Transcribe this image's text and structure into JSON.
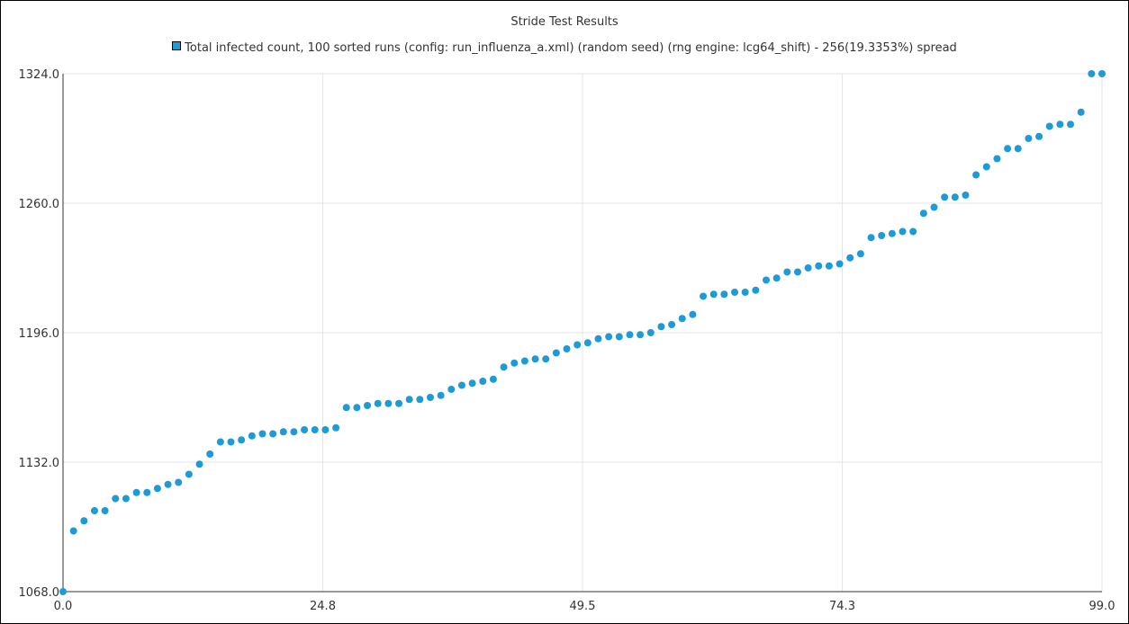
{
  "colors": {
    "series": "#1e9ad6",
    "grid": "#e6e6e6",
    "axis": "#333333"
  },
  "chart_data": {
    "type": "scatter",
    "title": "Stride Test Results",
    "xlabel": "",
    "ylabel": "",
    "grid": true,
    "legend_position": "top-center",
    "xlim": [
      0,
      99
    ],
    "ylim": [
      1068,
      1324
    ],
    "x_ticks": [
      "0.0",
      "24.8",
      "49.5",
      "74.3",
      "99.0"
    ],
    "y_ticks": [
      "1068.0",
      "1132.0",
      "1196.0",
      "1260.0",
      "1324.0"
    ],
    "series": [
      {
        "name": "Total infected count, 100 sorted runs (config: run_influenza_a.xml) (random seed) (rng engine: lcg64_shift) - 256(19.3353%) spread",
        "x": [
          0,
          1,
          2,
          3,
          4,
          5,
          6,
          7,
          8,
          9,
          10,
          11,
          12,
          13,
          14,
          15,
          16,
          17,
          18,
          19,
          20,
          21,
          22,
          23,
          24,
          25,
          26,
          27,
          28,
          29,
          30,
          31,
          32,
          33,
          34,
          35,
          36,
          37,
          38,
          39,
          40,
          41,
          42,
          43,
          44,
          45,
          46,
          47,
          48,
          49,
          50,
          51,
          52,
          53,
          54,
          55,
          56,
          57,
          58,
          59,
          60,
          61,
          62,
          63,
          64,
          65,
          66,
          67,
          68,
          69,
          70,
          71,
          72,
          73,
          74,
          75,
          76,
          77,
          78,
          79,
          80,
          81,
          82,
          83,
          84,
          85,
          86,
          87,
          88,
          89,
          90,
          91,
          92,
          93,
          94,
          95,
          96,
          97,
          98,
          99
        ],
        "y": [
          1068,
          1098,
          1103,
          1108,
          1108,
          1114,
          1114,
          1117,
          1117,
          1119,
          1121,
          1122,
          1126,
          1131,
          1136,
          1142,
          1142,
          1143,
          1145,
          1146,
          1146,
          1147,
          1147,
          1148,
          1148,
          1148,
          1149,
          1159,
          1159,
          1160,
          1161,
          1161,
          1161,
          1163,
          1163,
          1164,
          1165,
          1168,
          1170,
          1171,
          1172,
          1173,
          1179,
          1181,
          1182,
          1183,
          1183,
          1186,
          1188,
          1190,
          1191,
          1193,
          1194,
          1194,
          1195,
          1195,
          1196,
          1199,
          1200,
          1203,
          1205,
          1214,
          1215,
          1215,
          1216,
          1216,
          1217,
          1222,
          1223,
          1226,
          1226,
          1228,
          1229,
          1229,
          1230,
          1233,
          1235,
          1243,
          1244,
          1245,
          1246,
          1246,
          1255,
          1258,
          1263,
          1263,
          1264,
          1274,
          1278,
          1282,
          1287,
          1287,
          1292,
          1293,
          1298,
          1299,
          1299,
          1305,
          1324,
          1324
        ]
      }
    ]
  }
}
